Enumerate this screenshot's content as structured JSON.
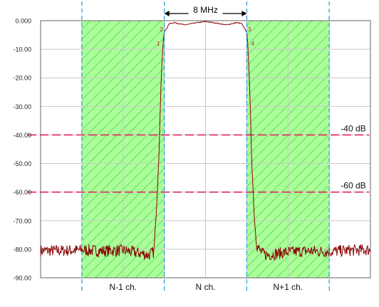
{
  "chart_data": {
    "type": "line",
    "title": "",
    "xlabel": "",
    "ylabel": "",
    "ylim": [
      -90,
      0
    ],
    "y_ticks": [
      "0.000",
      "-10.00",
      "-20.00",
      "-30.00",
      "-40.00",
      "-50.00",
      "-60.00",
      "-70.00",
      "-80.00",
      "-90.00"
    ],
    "grid": true,
    "x_range_mhz": [
      -16,
      16
    ],
    "series": [
      {
        "color": "#8b0000",
        "x": [
          -16,
          -14,
          -12,
          -10,
          -8,
          -6.2,
          -5.5,
          -5,
          -4.75,
          -4.5,
          -4.3,
          -4.1,
          -4.0,
          -3.5,
          -3,
          -2,
          -1,
          0,
          1,
          2,
          3,
          3.5,
          4.0,
          4.1,
          4.3,
          4.5,
          4.75,
          5,
          5.5,
          6,
          8,
          10,
          12,
          14,
          16
        ],
        "y": [
          -80.5,
          -80.5,
          -80.3,
          -80.6,
          -80.4,
          -81.5,
          -82,
          -81,
          -65,
          -45,
          -20,
          -7,
          -4,
          -1,
          -0.7,
          -1.5,
          -0.8,
          -0.3,
          -0.8,
          -1.5,
          -0.7,
          -1,
          -4,
          -8,
          -25,
          -50,
          -70,
          -79,
          -81.5,
          -82,
          -81,
          -80.6,
          -80.8,
          -80.4,
          -80.2
        ]
      }
    ],
    "markers": [
      "1",
      "2",
      "3",
      "4"
    ],
    "reference_lines": [
      {
        "y": -40,
        "label": "-40 dB",
        "color": "#e0245e"
      },
      {
        "y": -60,
        "label": "-60 dB",
        "color": "#e0245e"
      }
    ],
    "bands": [
      {
        "label": "N-1 ch.",
        "fill": "#aaff99",
        "hatch": "#3cc43c"
      },
      {
        "label": "N ch.",
        "fill": "none"
      },
      {
        "label": "N+1 ch.",
        "fill": "#aaff99",
        "hatch": "#3cc43c"
      }
    ],
    "bandwidth_label": "8 MHz",
    "colors": {
      "boundary": "#29a8d6",
      "grid": "#c8c8c8",
      "axis": "#666666"
    }
  }
}
